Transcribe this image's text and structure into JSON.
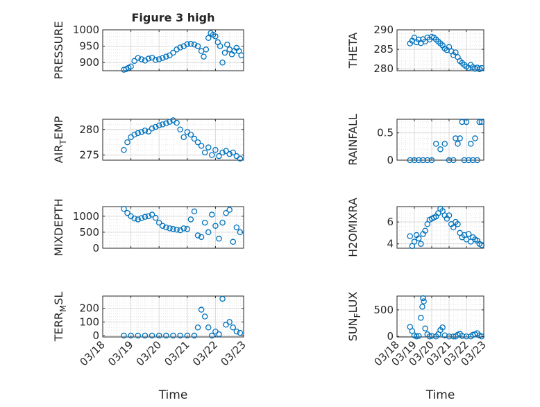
{
  "figure": {
    "title": "Figure 3 high"
  },
  "shared_x": {
    "label": "Time",
    "ticks": [
      "03/18",
      "03/19",
      "03/20",
      "03/21",
      "03/22",
      "03/23"
    ],
    "range": [
      "03/18",
      "03/23"
    ]
  },
  "colors": {
    "marker": "#0072BD",
    "axis": "#262626",
    "grid": "#d9d9d9"
  },
  "chart_data": [
    {
      "type": "scatter",
      "title": "Figure 3 high",
      "ylabel": "PRESSURE",
      "ylim": [
        875,
        1000
      ],
      "yticks": [
        900,
        950,
        1000
      ],
      "grid": true,
      "x": [
        "03/18 18:00",
        "03/18 20:00",
        "03/18 22:00",
        "03/19 00:00",
        "03/19 03:00",
        "03/19 06:00",
        "03/19 09:00",
        "03/19 12:00",
        "03/19 15:00",
        "03/19 18:00",
        "03/19 21:00",
        "03/20 00:00",
        "03/20 03:00",
        "03/20 06:00",
        "03/20 09:00",
        "03/20 12:00",
        "03/20 15:00",
        "03/20 18:00",
        "03/20 21:00",
        "03/21 00:00",
        "03/21 03:00",
        "03/21 06:00",
        "03/21 09:00",
        "03/21 12:00",
        "03/21 14:00",
        "03/21 16:00",
        "03/21 18:00",
        "03/21 20:00",
        "03/21 22:00",
        "03/22 00:00",
        "03/22 02:00",
        "03/22 04:00",
        "03/22 06:00",
        "03/22 08:00",
        "03/22 10:00",
        "03/22 12:00",
        "03/22 14:00",
        "03/22 16:00",
        "03/22 18:00",
        "03/22 20:00",
        "03/22 22:00"
      ],
      "y": [
        878,
        880,
        884,
        888,
        905,
        914,
        910,
        906,
        912,
        915,
        908,
        910,
        914,
        918,
        922,
        930,
        940,
        946,
        950,
        956,
        957,
        955,
        950,
        935,
        918,
        940,
        975,
        990,
        985,
        980,
        962,
        950,
        900,
        930,
        955,
        940,
        925,
        935,
        945,
        935,
        922
      ]
    },
    {
      "type": "scatter",
      "ylabel": "THETA",
      "ylim": [
        279.5,
        290
      ],
      "yticks": [
        280,
        285,
        290
      ],
      "grid": true,
      "x": [
        "03/18 18:00",
        "03/18 21:00",
        "03/19 00:00",
        "03/19 03:00",
        "03/19 06:00",
        "03/19 09:00",
        "03/19 12:00",
        "03/19 15:00",
        "03/19 18:00",
        "03/19 21:00",
        "03/20 00:00",
        "03/20 03:00",
        "03/20 06:00",
        "03/20 09:00",
        "03/20 12:00",
        "03/20 15:00",
        "03/20 18:00",
        "03/20 21:00",
        "03/21 00:00",
        "03/21 03:00",
        "03/21 06:00",
        "03/21 09:00",
        "03/21 12:00",
        "03/21 15:00",
        "03/21 18:00",
        "03/21 21:00",
        "03/22 00:00",
        "03/22 03:00",
        "03/22 06:00",
        "03/22 09:00",
        "03/22 12:00",
        "03/22 15:00",
        "03/22 18:00",
        "03/22 21:00"
      ],
      "y": [
        286.5,
        287.2,
        288.0,
        286.8,
        287.5,
        286.6,
        287.6,
        287.0,
        288.0,
        287.5,
        288.2,
        288.0,
        287.5,
        287.0,
        286.5,
        286.0,
        285.2,
        284.8,
        285.6,
        284.5,
        283.5,
        284.2,
        283.0,
        282.0,
        281.5,
        281.0,
        280.6,
        280.2,
        281.0,
        280.4,
        280.0,
        280.3,
        279.9,
        280.2
      ]
    },
    {
      "type": "scatter",
      "ylabel": "AIR_TEMP",
      "ylim": [
        274,
        282
      ],
      "yticks": [
        275,
        280
      ],
      "grid": true,
      "x": [
        "03/18 18:00",
        "03/18 21:00",
        "03/19 00:00",
        "03/19 03:00",
        "03/19 06:00",
        "03/19 09:00",
        "03/19 12:00",
        "03/19 15:00",
        "03/19 18:00",
        "03/19 21:00",
        "03/20 00:00",
        "03/20 03:00",
        "03/20 06:00",
        "03/20 09:00",
        "03/20 12:00",
        "03/20 15:00",
        "03/20 18:00",
        "03/20 21:00",
        "03/21 00:00",
        "03/21 03:00",
        "03/21 06:00",
        "03/21 09:00",
        "03/21 12:00",
        "03/21 15:00",
        "03/21 18:00",
        "03/21 21:00",
        "03/22 00:00",
        "03/22 03:00",
        "03/22 06:00",
        "03/22 09:00",
        "03/22 12:00",
        "03/22 15:00",
        "03/22 18:00",
        "03/22 21:00"
      ],
      "y": [
        276.0,
        277.5,
        278.5,
        279.0,
        279.3,
        279.5,
        279.8,
        279.6,
        280.2,
        280.5,
        280.8,
        281.0,
        281.2,
        281.5,
        281.8,
        281.3,
        280.0,
        278.5,
        279.5,
        279.0,
        278.2,
        277.5,
        276.8,
        275.5,
        276.5,
        275.0,
        276.0,
        274.8,
        275.5,
        275.8,
        275.2,
        275.5,
        274.8,
        274.3
      ]
    },
    {
      "type": "scatter",
      "ylabel": "RAINFALL",
      "ylim": [
        0,
        0.75
      ],
      "yticks": [
        0,
        0.5
      ],
      "grid": true,
      "x": [
        "03/18 18:00",
        "03/19 00:00",
        "03/19 06:00",
        "03/19 12:00",
        "03/19 18:00",
        "03/20 00:00",
        "03/20 06:00",
        "03/20 12:00",
        "03/20 18:00",
        "03/21 00:00",
        "03/21 06:00",
        "03/21 09:00",
        "03/21 12:00",
        "03/21 15:00",
        "03/21 18:00",
        "03/21 21:00",
        "03/22 00:00",
        "03/22 03:00",
        "03/22 06:00",
        "03/22 09:00",
        "03/22 12:00",
        "03/22 15:00",
        "03/22 18:00",
        "03/22 21:00"
      ],
      "y": [
        0,
        0,
        0,
        0,
        0,
        0,
        0.3,
        0.2,
        0.3,
        0,
        0,
        0.4,
        0.3,
        0.4,
        0.7,
        0,
        0.7,
        0,
        0.3,
        0,
        0.4,
        0,
        0.7,
        0.7
      ]
    },
    {
      "type": "scatter",
      "ylabel": "MIXDEPTH",
      "ylim": [
        0,
        1300
      ],
      "yticks": [
        0,
        500,
        1000
      ],
      "grid": true,
      "x": [
        "03/18 18:00",
        "03/18 21:00",
        "03/19 00:00",
        "03/19 03:00",
        "03/19 06:00",
        "03/19 09:00",
        "03/19 12:00",
        "03/19 15:00",
        "03/19 18:00",
        "03/19 21:00",
        "03/20 00:00",
        "03/20 03:00",
        "03/20 06:00",
        "03/20 09:00",
        "03/20 12:00",
        "03/20 15:00",
        "03/20 18:00",
        "03/20 21:00",
        "03/21 00:00",
        "03/21 03:00",
        "03/21 06:00",
        "03/21 09:00",
        "03/21 12:00",
        "03/21 15:00",
        "03/21 18:00",
        "03/21 21:00",
        "03/22 00:00",
        "03/22 03:00",
        "03/22 06:00",
        "03/22 09:00",
        "03/22 12:00",
        "03/22 15:00",
        "03/22 18:00",
        "03/22 21:00"
      ],
      "y": [
        1230,
        1100,
        1000,
        930,
        900,
        940,
        980,
        1000,
        1050,
        950,
        800,
        700,
        650,
        620,
        600,
        580,
        560,
        620,
        600,
        900,
        1150,
        400,
        350,
        800,
        500,
        1050,
        700,
        300,
        800,
        1100,
        1200,
        200,
        650,
        500
      ]
    },
    {
      "type": "scatter",
      "ylabel": "H2OMIXRA",
      "ylim": [
        3.6,
        7.4
      ],
      "yticks": [
        4,
        6
      ],
      "grid": true,
      "x": [
        "03/18 18:00",
        "03/18 21:00",
        "03/19 00:00",
        "03/19 03:00",
        "03/19 06:00",
        "03/19 09:00",
        "03/19 12:00",
        "03/19 15:00",
        "03/19 18:00",
        "03/19 21:00",
        "03/20 00:00",
        "03/20 03:00",
        "03/20 06:00",
        "03/20 09:00",
        "03/20 12:00",
        "03/20 15:00",
        "03/20 18:00",
        "03/20 21:00",
        "03/21 00:00",
        "03/21 03:00",
        "03/21 06:00",
        "03/21 09:00",
        "03/21 12:00",
        "03/21 15:00",
        "03/21 18:00",
        "03/21 21:00",
        "03/22 00:00",
        "03/22 03:00",
        "03/22 06:00",
        "03/22 09:00",
        "03/22 12:00",
        "03/22 15:00",
        "03/22 18:00",
        "03/22 21:00"
      ],
      "y": [
        4.7,
        3.8,
        4.2,
        4.8,
        4.5,
        4.0,
        4.9,
        5.2,
        5.8,
        6.2,
        6.3,
        6.4,
        6.5,
        6.8,
        7.2,
        7.0,
        6.6,
        6.3,
        6.6,
        5.8,
        5.5,
        6.0,
        5.8,
        5.0,
        4.6,
        4.8,
        4.4,
        4.9,
        4.2,
        4.6,
        4.4,
        4.3,
        4.0,
        3.9
      ]
    },
    {
      "type": "scatter",
      "ylabel": "TERR_MSL",
      "ylim": [
        -10,
        290
      ],
      "yticks": [
        0,
        100,
        200
      ],
      "grid": true,
      "x": [
        "03/18 18:00",
        "03/19 00:00",
        "03/19 06:00",
        "03/19 12:00",
        "03/19 18:00",
        "03/20 00:00",
        "03/20 06:00",
        "03/20 12:00",
        "03/20 18:00",
        "03/21 00:00",
        "03/21 06:00",
        "03/21 09:00",
        "03/21 12:00",
        "03/21 15:00",
        "03/21 18:00",
        "03/21 21:00",
        "03/22 00:00",
        "03/22 03:00",
        "03/22 06:00",
        "03/22 09:00",
        "03/22 12:00",
        "03/22 15:00",
        "03/22 18:00",
        "03/22 21:00"
      ],
      "y": [
        0,
        0,
        0,
        0,
        0,
        0,
        0,
        0,
        0,
        0,
        0,
        60,
        190,
        140,
        60,
        0,
        30,
        10,
        270,
        80,
        100,
        60,
        30,
        20
      ]
    },
    {
      "type": "scatter",
      "ylabel": "SUN_FLUX",
      "ylim": [
        -10,
        760
      ],
      "yticks": [
        0,
        500
      ],
      "grid": true,
      "x": [
        "03/18 18:00",
        "03/18 21:00",
        "03/19 00:00",
        "03/19 03:00",
        "03/19 06:00",
        "03/19 09:00",
        "03/19 11:00",
        "03/19 12:00",
        "03/19 13:00",
        "03/19 15:00",
        "03/19 18:00",
        "03/19 21:00",
        "03/20 00:00",
        "03/20 06:00",
        "03/20 09:00",
        "03/20 12:00",
        "03/20 15:00",
        "03/20 18:00",
        "03/21 00:00",
        "03/21 06:00",
        "03/21 09:00",
        "03/21 12:00",
        "03/21 15:00",
        "03/21 18:00",
        "03/22 00:00",
        "03/22 06:00",
        "03/22 09:00",
        "03/22 12:00",
        "03/22 15:00",
        "03/22 18:00",
        "03/22 21:00"
      ],
      "y": [
        180,
        100,
        20,
        0,
        10,
        350,
        560,
        720,
        660,
        150,
        40,
        0,
        10,
        0,
        40,
        120,
        170,
        20,
        0,
        0,
        0,
        30,
        50,
        10,
        0,
        0,
        30,
        40,
        60,
        20,
        0
      ]
    }
  ]
}
